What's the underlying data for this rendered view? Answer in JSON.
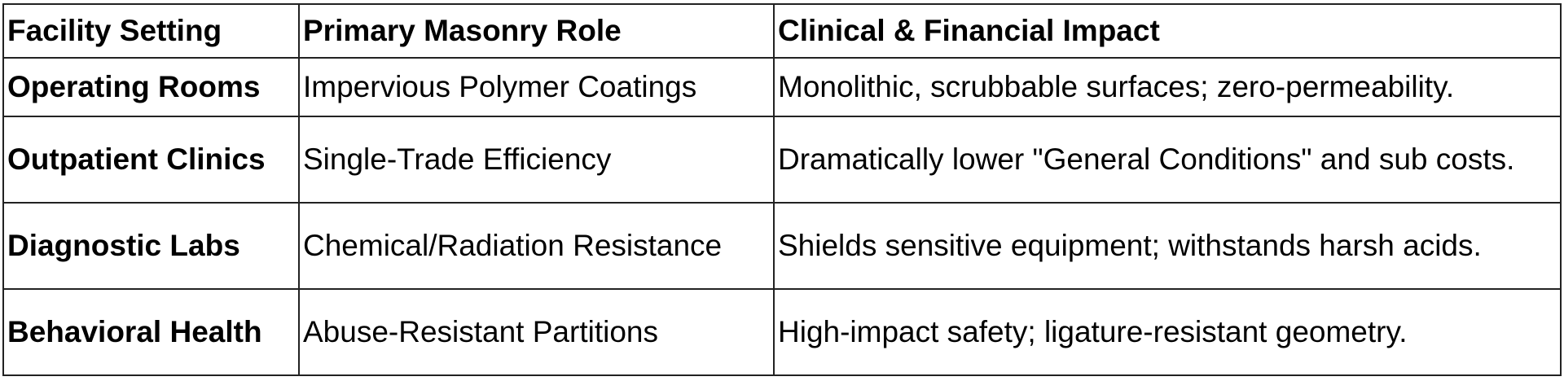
{
  "table": {
    "header": [
      "Facility Setting",
      "Primary Masonry Role",
      "Clinical & Financial Impact"
    ],
    "rows": [
      [
        "Operating Rooms",
        "Impervious Polymer Coatings",
        "Monolithic, scrubbable surfaces; zero-permeability."
      ],
      [
        "Outpatient Clinics",
        "Single-Trade Efficiency",
        "Dramatically lower \"General Conditions\" and sub costs."
      ],
      [
        "Diagnostic Labs",
        "Chemical/Radiation Resistance",
        "Shields sensitive equipment; withstands harsh acids."
      ],
      [
        "Behavioral Health",
        "Abuse-Resistant Partitions",
        "High-impact safety; ligature-resistant geometry."
      ]
    ]
  }
}
